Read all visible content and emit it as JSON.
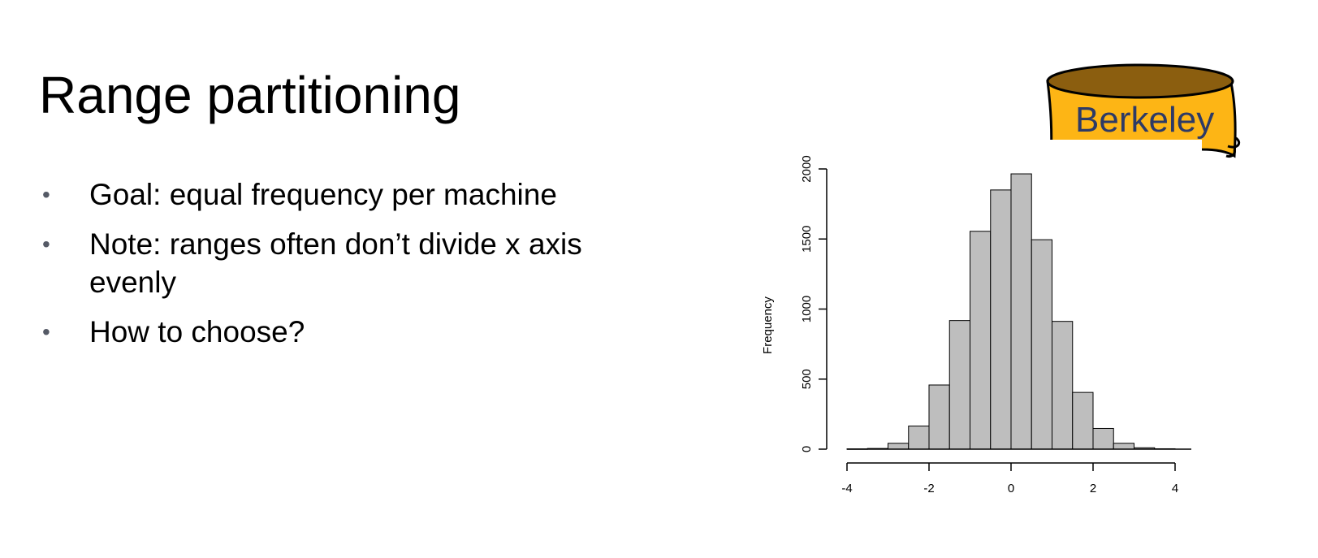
{
  "slide": {
    "title": "Range partitioning",
    "bullets": [
      "Goal: equal frequency per machine",
      "Note: ranges often don’t divide x axis evenly",
      "How to choose?"
    ]
  },
  "logo": {
    "text": "Berkeley",
    "colors": {
      "gold": "#FDB515",
      "top": "#8B5E0F",
      "text": "#2d3a66"
    }
  },
  "chart_data": {
    "type": "bar",
    "title": "",
    "xlabel": "",
    "ylabel": "Frequency",
    "xlim": [
      -4,
      4
    ],
    "ylim": [
      0,
      2000
    ],
    "x_ticks": [
      -4,
      -2,
      0,
      2,
      4
    ],
    "y_ticks": [
      0,
      500,
      1000,
      1500,
      2000
    ],
    "bin_edges": [
      -4.0,
      -3.5,
      -3.0,
      -2.5,
      -2.0,
      -1.5,
      -1.0,
      -0.5,
      0.0,
      0.5,
      1.0,
      1.5,
      2.0,
      2.5,
      3.0,
      3.5,
      4.0
    ],
    "values": [
      2,
      5,
      42,
      165,
      458,
      918,
      1555,
      1850,
      1965,
      1495,
      912,
      405,
      148,
      42,
      10,
      3
    ],
    "bar_color": "#bebebe",
    "grid": false
  }
}
